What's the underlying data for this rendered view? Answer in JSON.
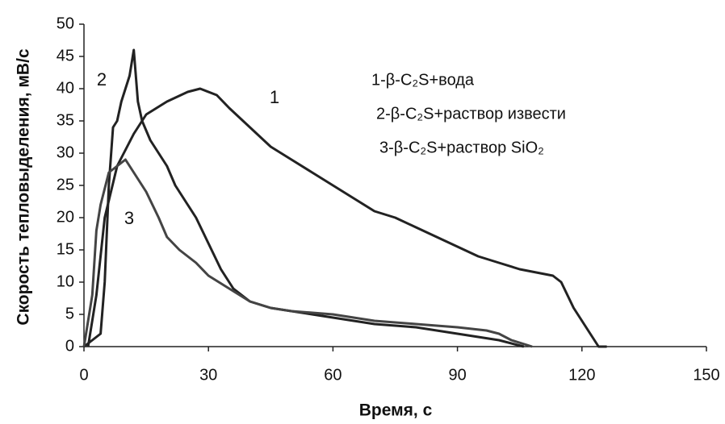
{
  "chart_data": {
    "type": "line",
    "xlabel": "Время, с",
    "ylabel": "Скорость тепловыделения, мВ/с",
    "xlim": [
      0,
      150
    ],
    "xticks": [
      0,
      30,
      60,
      90,
      120,
      150
    ],
    "ylim": [
      0,
      50
    ],
    "yticks": [
      0,
      5,
      10,
      15,
      20,
      25,
      30,
      35,
      40,
      45,
      50
    ],
    "grid": false,
    "legend": "top-right",
    "series": [
      {
        "name": "1-β-C₂S+вода",
        "color": "#222222",
        "x": [
          1,
          3,
          5,
          8,
          12,
          15,
          20,
          25,
          28,
          32,
          35,
          40,
          45,
          50,
          55,
          60,
          65,
          70,
          75,
          80,
          85,
          90,
          95,
          100,
          105,
          113,
          115,
          118,
          122,
          124,
          126
        ],
        "values": [
          0,
          8,
          20,
          28,
          33,
          36,
          38,
          39.5,
          40,
          39,
          37,
          34,
          31,
          29,
          27,
          25,
          23,
          21,
          20,
          18.5,
          17,
          15.5,
          14,
          13,
          12,
          11,
          10,
          6,
          2,
          0,
          0
        ]
      },
      {
        "name": "2-β-C₂S+раствор извести",
        "color": "#222222",
        "x": [
          0,
          2,
          4,
          5,
          6,
          7,
          8,
          9,
          10,
          11,
          12,
          13,
          14,
          16,
          18,
          20,
          22,
          25,
          27,
          30,
          33,
          36,
          40,
          45,
          50,
          55,
          60,
          65,
          70,
          80,
          90,
          100,
          106
        ],
        "values": [
          0,
          1,
          2,
          10,
          25,
          34,
          35,
          38,
          40,
          42,
          46,
          38,
          35,
          32,
          30,
          28,
          25,
          22,
          20,
          16,
          12,
          9,
          7,
          6,
          5.5,
          5,
          4.5,
          4,
          3.5,
          3,
          2,
          1,
          0
        ]
      },
      {
        "name": "3-β-C₂S+раствор SiO₂",
        "color": "#444444",
        "x": [
          0,
          2,
          3,
          4,
          6,
          8,
          10,
          12,
          15,
          18,
          20,
          23,
          27,
          30,
          35,
          40,
          45,
          50,
          60,
          70,
          80,
          90,
          97,
          100,
          103,
          108
        ],
        "values": [
          0,
          8,
          18,
          22,
          27,
          28,
          29,
          27,
          24,
          20,
          17,
          15,
          13,
          11,
          9,
          7,
          6,
          5.5,
          5,
          4,
          3.5,
          3,
          2.5,
          2,
          1,
          0
        ]
      }
    ],
    "annotations": [
      "1",
      "2",
      "3"
    ]
  }
}
